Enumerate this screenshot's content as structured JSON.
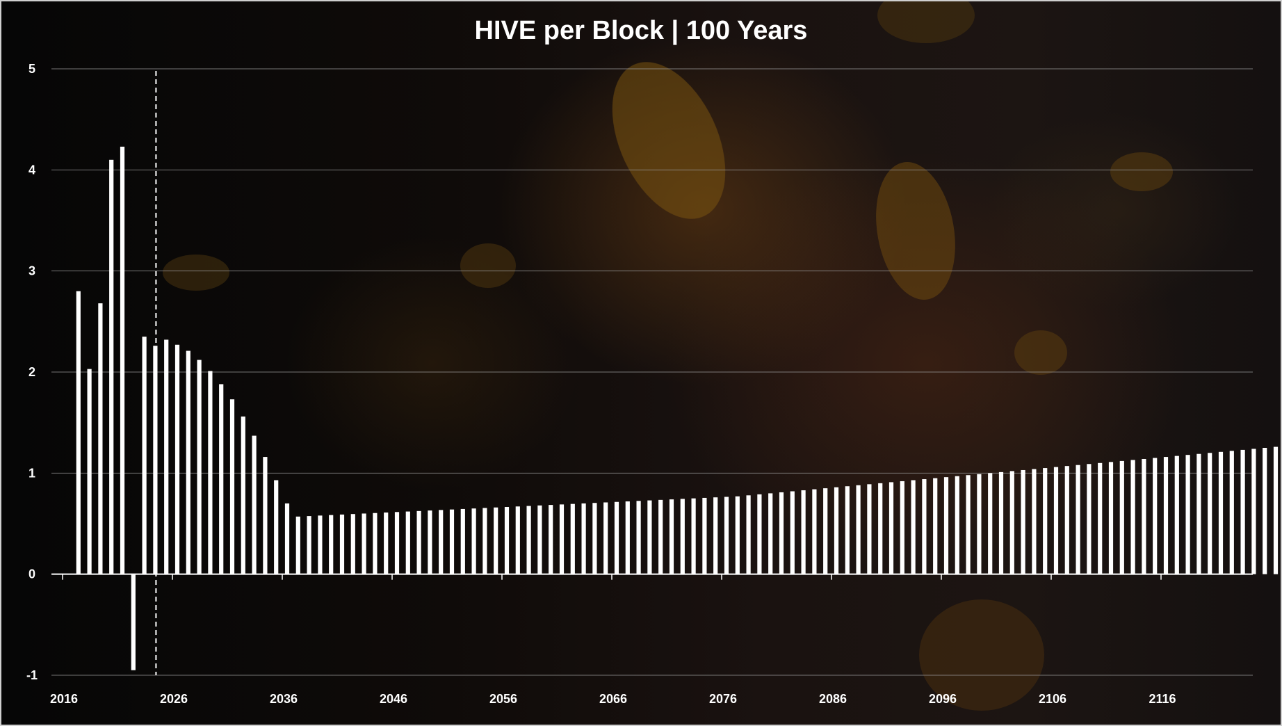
{
  "chart_data": {
    "type": "bar",
    "title": "HIVE per Block | 100 Years",
    "xlabel": "",
    "ylabel": "",
    "ylim": [
      -1,
      5
    ],
    "yticks": [
      5,
      4,
      3,
      2,
      1,
      0,
      -1
    ],
    "xticks": [
      "2016",
      "2026",
      "2036",
      "2046",
      "2056",
      "2066",
      "2076",
      "2086",
      "2096",
      "2106",
      "2116"
    ],
    "x_start_year": 2017,
    "marker_line_year": 2024,
    "grid": true,
    "legend": "none",
    "colors": {
      "bar": "#ffffff",
      "grid": "#9a9a9a",
      "text": "#ffffff",
      "marker_line": "#ffffff"
    },
    "years": [
      2017,
      2018,
      2019,
      2020,
      2021,
      2022,
      2023,
      2024,
      2025,
      2026,
      2027,
      2028,
      2029,
      2030,
      2031,
      2032,
      2033,
      2034,
      2035,
      2036,
      2037,
      2038,
      2039,
      2040,
      2041,
      2042,
      2043,
      2044,
      2045,
      2046,
      2047,
      2048,
      2049,
      2050,
      2051,
      2052,
      2053,
      2054,
      2055,
      2056,
      2057,
      2058,
      2059,
      2060,
      2061,
      2062,
      2063,
      2064,
      2065,
      2066,
      2067,
      2068,
      2069,
      2070,
      2071,
      2072,
      2073,
      2074,
      2075,
      2076,
      2077,
      2078,
      2079,
      2080,
      2081,
      2082,
      2083,
      2084,
      2085,
      2086,
      2087,
      2088,
      2089,
      2090,
      2091,
      2092,
      2093,
      2094,
      2095,
      2096,
      2097,
      2098,
      2099,
      2100,
      2101,
      2102,
      2103,
      2104,
      2105,
      2106,
      2107,
      2108,
      2109,
      2110,
      2111,
      2112,
      2113,
      2114,
      2115,
      2116,
      2117,
      2118,
      2119,
      2120,
      2121,
      2122,
      2123,
      2124,
      2125,
      2126
    ],
    "values": [
      2.8,
      2.03,
      2.68,
      4.1,
      4.23,
      -0.95,
      2.35,
      2.26,
      2.32,
      2.27,
      2.21,
      2.12,
      2.01,
      1.88,
      1.73,
      1.56,
      1.37,
      1.16,
      0.93,
      0.7,
      0.57,
      0.575,
      0.58,
      0.585,
      0.59,
      0.595,
      0.6,
      0.605,
      0.61,
      0.615,
      0.62,
      0.625,
      0.63,
      0.635,
      0.64,
      0.645,
      0.65,
      0.655,
      0.66,
      0.665,
      0.67,
      0.675,
      0.68,
      0.685,
      0.69,
      0.695,
      0.7,
      0.705,
      0.71,
      0.715,
      0.72,
      0.725,
      0.73,
      0.735,
      0.74,
      0.745,
      0.75,
      0.755,
      0.76,
      0.765,
      0.77,
      0.78,
      0.79,
      0.8,
      0.81,
      0.82,
      0.83,
      0.84,
      0.85,
      0.86,
      0.87,
      0.88,
      0.89,
      0.9,
      0.91,
      0.92,
      0.93,
      0.94,
      0.95,
      0.96,
      0.97,
      0.98,
      0.99,
      1.0,
      1.01,
      1.02,
      1.03,
      1.04,
      1.05,
      1.06,
      1.07,
      1.08,
      1.09,
      1.1,
      1.11,
      1.12,
      1.13,
      1.14,
      1.15,
      1.16,
      1.17,
      1.18,
      1.19,
      1.2,
      1.21,
      1.22,
      1.23,
      1.24,
      1.25,
      1.26
    ]
  }
}
